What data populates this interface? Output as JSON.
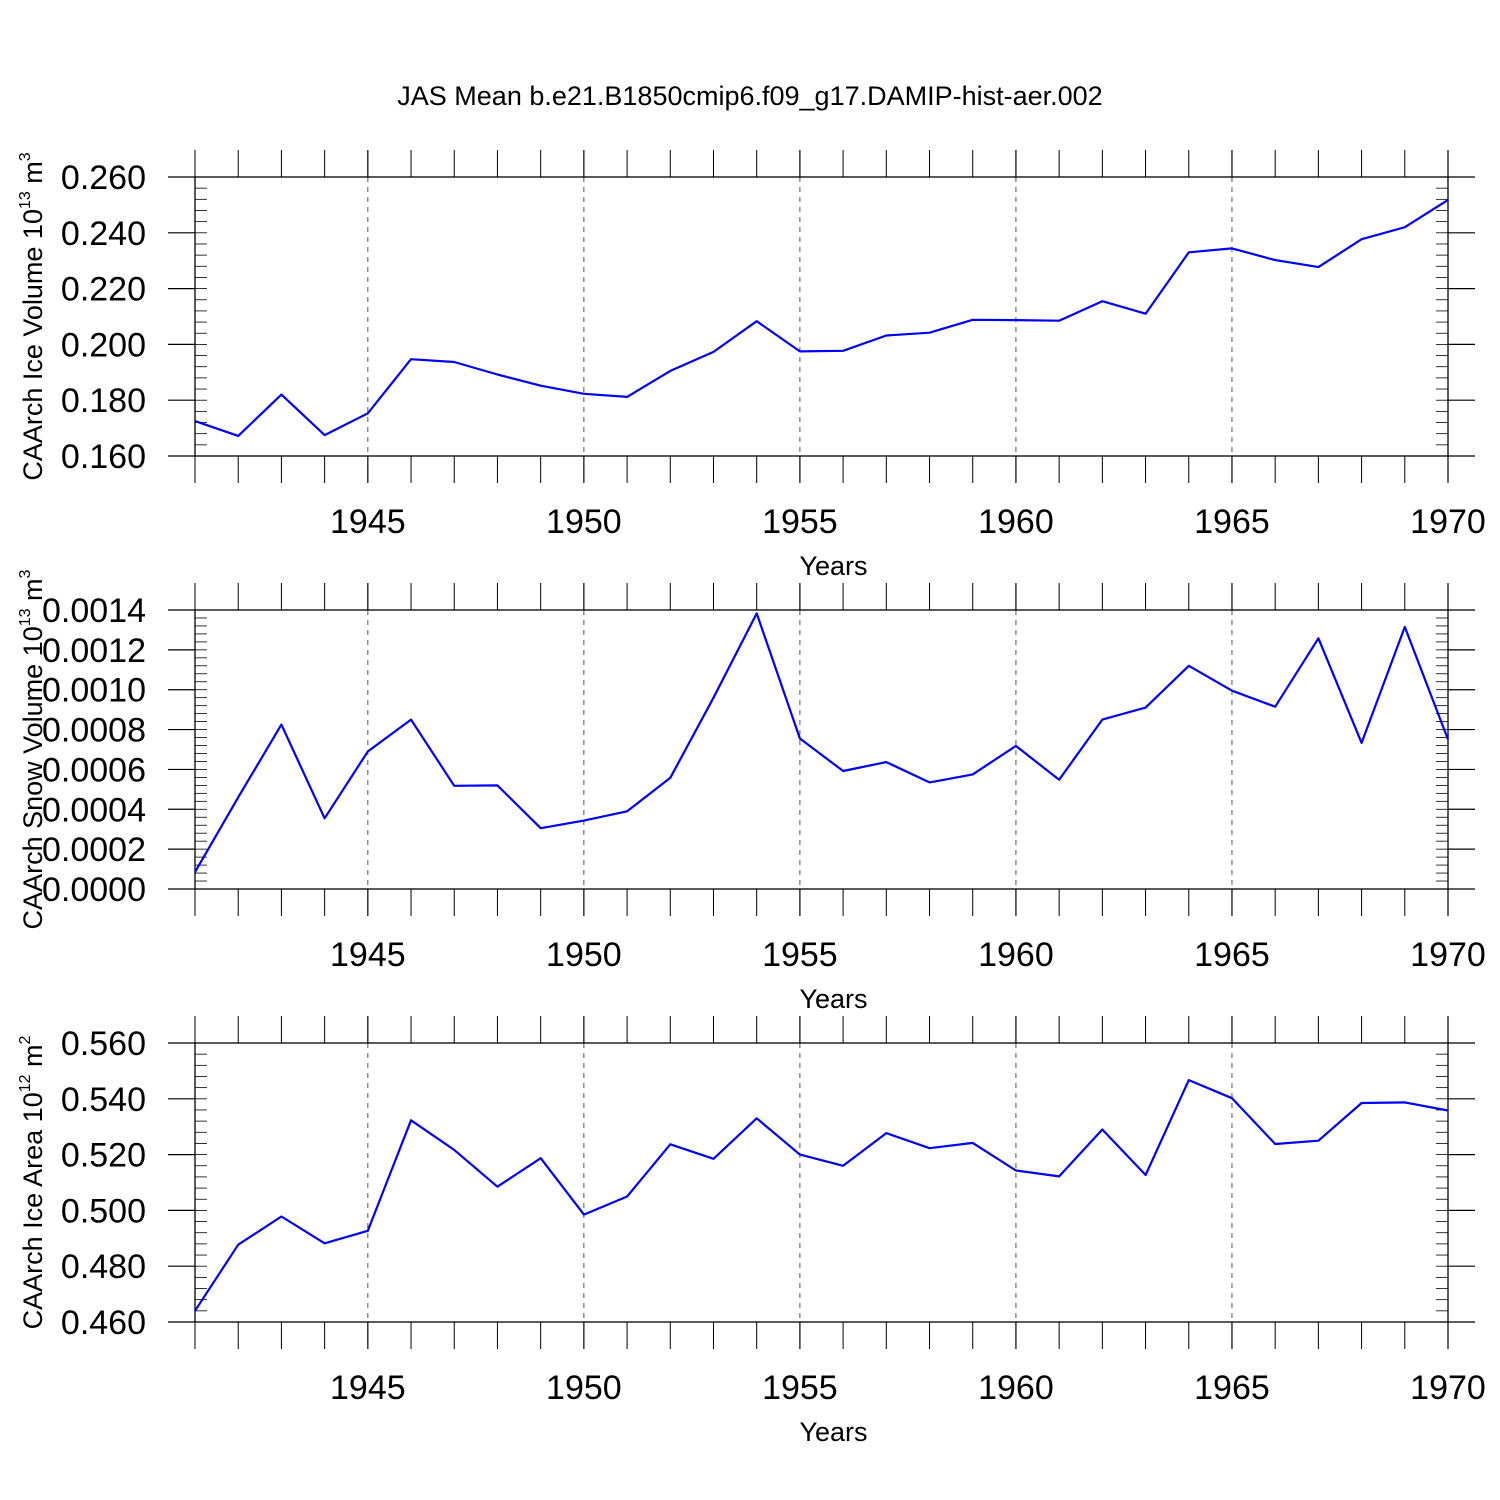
{
  "title": "JAS Mean b.e21.B1850cmip6.f09_g17.DAMIP-hist-aer.002",
  "colors": {
    "line": "#0000ff",
    "axis": "#000000",
    "grid": "#555555"
  },
  "chart_data": [
    {
      "type": "line",
      "xlabel": "Years",
      "ylabel_text": "CAArch Ice Volume 10",
      "ylabel_exp": "13",
      "ylabel_unit": "m",
      "ylabel_unit_exp": "3",
      "xlim": [
        1941,
        1970
      ],
      "ylim": [
        0.16,
        0.26
      ],
      "xticks": [
        1945,
        1950,
        1955,
        1960,
        1965,
        1970
      ],
      "yticks": [
        0.16,
        0.18,
        0.2,
        0.22,
        0.24,
        0.26
      ],
      "ytick_labels": [
        "0.160",
        "0.180",
        "0.200",
        "0.220",
        "0.240",
        "0.260"
      ],
      "yminor_step": 0.004,
      "x": [
        1941,
        1942,
        1943,
        1944,
        1945,
        1946,
        1947,
        1948,
        1949,
        1950,
        1951,
        1952,
        1953,
        1954,
        1955,
        1956,
        1957,
        1958,
        1959,
        1960,
        1961,
        1962,
        1963,
        1964,
        1965,
        1966,
        1967,
        1968,
        1969,
        1970
      ],
      "values": [
        0.1725,
        0.1672,
        0.182,
        0.1675,
        0.1753,
        0.1947,
        0.1937,
        0.1892,
        0.1852,
        0.1823,
        0.1812,
        0.1905,
        0.1973,
        0.2083,
        0.1975,
        0.1977,
        0.2032,
        0.2042,
        0.2088,
        0.2087,
        0.2085,
        0.2155,
        0.211,
        0.233,
        0.2344,
        0.2302,
        0.2277,
        0.2377,
        0.242,
        0.2518
      ]
    },
    {
      "type": "line",
      "xlabel": "Years",
      "ylabel_text": "CAArch Snow Volume 10",
      "ylabel_exp": "13",
      "ylabel_unit": "m",
      "ylabel_unit_exp": "3",
      "xlim": [
        1941,
        1970
      ],
      "ylim": [
        0.0,
        0.0014
      ],
      "xticks": [
        1945,
        1950,
        1955,
        1960,
        1965,
        1970
      ],
      "yticks": [
        0.0,
        0.0002,
        0.0004,
        0.0006,
        0.0008,
        0.001,
        0.0012,
        0.0014
      ],
      "ytick_labels": [
        "0.0000",
        "0.0002",
        "0.0004",
        "0.0006",
        "0.0008",
        "0.0010",
        "0.0012",
        "0.0014"
      ],
      "yminor_step": 4e-05,
      "x": [
        1941,
        1942,
        1943,
        1944,
        1945,
        1946,
        1947,
        1948,
        1949,
        1950,
        1951,
        1952,
        1953,
        1954,
        1955,
        1956,
        1957,
        1958,
        1959,
        1960,
        1961,
        1962,
        1963,
        1964,
        1965,
        1966,
        1967,
        1968,
        1969,
        1970
      ],
      "values": [
        8.5e-05,
        0.00046,
        0.000825,
        0.000355,
        0.00069,
        0.00085,
        0.000518,
        0.00052,
        0.000305,
        0.000343,
        0.00039,
        0.000558,
        0.00096,
        0.001383,
        0.000755,
        0.000592,
        0.000637,
        0.000535,
        0.000575,
        0.000718,
        0.000548,
        0.00085,
        0.00091,
        0.00112,
        0.000995,
        0.000915,
        0.001258,
        0.000733,
        0.001315,
        0.00075
      ]
    },
    {
      "type": "line",
      "xlabel": "Years",
      "ylabel_text": "CAArch Ice Area 10",
      "ylabel_exp": "12",
      "ylabel_unit": "m",
      "ylabel_unit_exp": "2",
      "xlim": [
        1941,
        1970
      ],
      "ylim": [
        0.46,
        0.56
      ],
      "xticks": [
        1945,
        1950,
        1955,
        1960,
        1965,
        1970
      ],
      "yticks": [
        0.46,
        0.48,
        0.5,
        0.52,
        0.54,
        0.56
      ],
      "ytick_labels": [
        "0.460",
        "0.480",
        "0.500",
        "0.520",
        "0.540",
        "0.560"
      ],
      "yminor_step": 0.004,
      "x": [
        1941,
        1942,
        1943,
        1944,
        1945,
        1946,
        1947,
        1948,
        1949,
        1950,
        1951,
        1952,
        1953,
        1954,
        1955,
        1956,
        1957,
        1958,
        1959,
        1960,
        1961,
        1962,
        1963,
        1964,
        1965,
        1966,
        1967,
        1968,
        1969,
        1970
      ],
      "values": [
        0.464,
        0.4877,
        0.4978,
        0.4882,
        0.4927,
        0.5323,
        0.5217,
        0.5085,
        0.5187,
        0.4985,
        0.505,
        0.5237,
        0.5185,
        0.533,
        0.52,
        0.516,
        0.5277,
        0.5223,
        0.5242,
        0.5143,
        0.5122,
        0.529,
        0.5127,
        0.5467,
        0.5402,
        0.5238,
        0.525,
        0.5385,
        0.5387,
        0.5358
      ]
    }
  ]
}
